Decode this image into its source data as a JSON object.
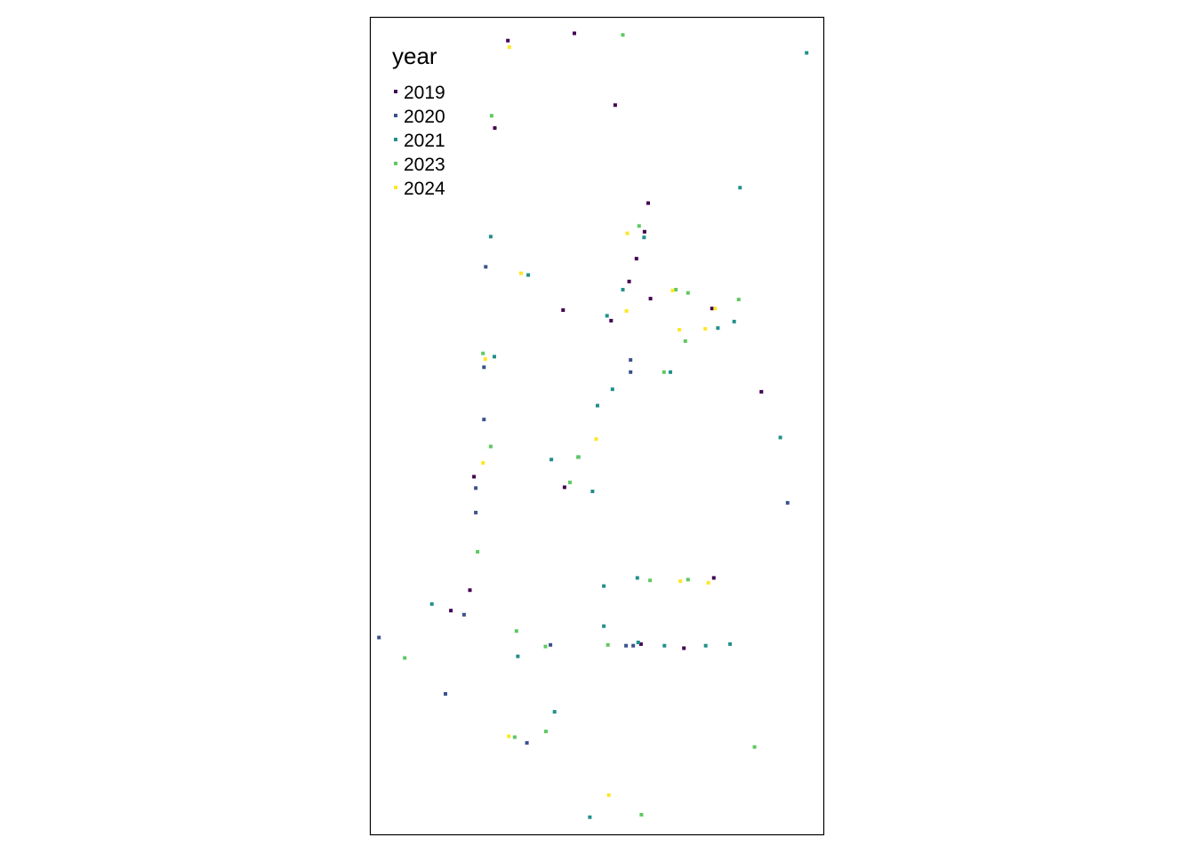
{
  "legend": {
    "title": "year",
    "items": [
      {
        "label": "2019",
        "color": "#440154"
      },
      {
        "label": "2020",
        "color": "#3b528b"
      },
      {
        "label": "2021",
        "color": "#21908c"
      },
      {
        "label": "2023",
        "color": "#5ec962"
      },
      {
        "label": "2024",
        "color": "#fde725"
      }
    ]
  },
  "chart_data": {
    "type": "scatter",
    "title": "",
    "xlabel": "",
    "ylabel": "",
    "grid": false,
    "legend_position": "top-left",
    "series": [
      {
        "name": "2019",
        "color": "#440154",
        "points": [
          [
            0.303,
            0.028
          ],
          [
            0.45,
            0.019
          ],
          [
            0.54,
            0.107
          ],
          [
            0.274,
            0.135
          ],
          [
            0.613,
            0.227
          ],
          [
            0.605,
            0.262
          ],
          [
            0.587,
            0.295
          ],
          [
            0.571,
            0.323
          ],
          [
            0.618,
            0.344
          ],
          [
            0.425,
            0.358
          ],
          [
            0.531,
            0.371
          ],
          [
            0.754,
            0.356
          ],
          [
            0.863,
            0.458
          ],
          [
            0.428,
            0.575
          ],
          [
            0.228,
            0.562
          ],
          [
            0.219,
            0.701
          ],
          [
            0.177,
            0.726
          ],
          [
            0.758,
            0.686
          ],
          [
            0.692,
            0.772
          ],
          [
            0.597,
            0.767
          ]
        ]
      },
      {
        "name": "2020",
        "color": "#3b528b",
        "points": [
          [
            0.254,
            0.305
          ],
          [
            0.574,
            0.419
          ],
          [
            0.574,
            0.434
          ],
          [
            0.25,
            0.428
          ],
          [
            0.25,
            0.492
          ],
          [
            0.232,
            0.576
          ],
          [
            0.232,
            0.606
          ],
          [
            0.921,
            0.594
          ],
          [
            0.206,
            0.731
          ],
          [
            0.018,
            0.759
          ],
          [
            0.165,
            0.828
          ],
          [
            0.397,
            0.768
          ],
          [
            0.564,
            0.769
          ],
          [
            0.58,
            0.769
          ],
          [
            0.345,
            0.888
          ]
        ]
      },
      {
        "name": "2021",
        "color": "#21908c",
        "points": [
          [
            0.963,
            0.043
          ],
          [
            0.816,
            0.208
          ],
          [
            0.265,
            0.268
          ],
          [
            0.348,
            0.315
          ],
          [
            0.557,
            0.333
          ],
          [
            0.522,
            0.365
          ],
          [
            0.604,
            0.269
          ],
          [
            0.803,
            0.372
          ],
          [
            0.767,
            0.38
          ],
          [
            0.273,
            0.415
          ],
          [
            0.662,
            0.434
          ],
          [
            0.534,
            0.455
          ],
          [
            0.501,
            0.475
          ],
          [
            0.905,
            0.514
          ],
          [
            0.399,
            0.541
          ],
          [
            0.459,
            0.538
          ],
          [
            0.49,
            0.58
          ],
          [
            0.515,
            0.696
          ],
          [
            0.589,
            0.686
          ],
          [
            0.135,
            0.718
          ],
          [
            0.515,
            0.745
          ],
          [
            0.649,
            0.769
          ],
          [
            0.794,
            0.767
          ],
          [
            0.591,
            0.765
          ],
          [
            0.325,
            0.782
          ],
          [
            0.406,
            0.85
          ],
          [
            0.484,
            0.979
          ],
          [
            0.74,
            0.769
          ]
        ]
      },
      {
        "name": "2023",
        "color": "#5ec962",
        "points": [
          [
            0.557,
            0.021
          ],
          [
            0.267,
            0.12
          ],
          [
            0.593,
            0.255
          ],
          [
            0.674,
            0.333
          ],
          [
            0.701,
            0.337
          ],
          [
            0.813,
            0.345
          ],
          [
            0.695,
            0.396
          ],
          [
            0.648,
            0.434
          ],
          [
            0.248,
            0.411
          ],
          [
            0.265,
            0.525
          ],
          [
            0.458,
            0.538
          ],
          [
            0.44,
            0.569
          ],
          [
            0.236,
            0.654
          ],
          [
            0.617,
            0.689
          ],
          [
            0.701,
            0.688
          ],
          [
            0.322,
            0.751
          ],
          [
            0.386,
            0.77
          ],
          [
            0.524,
            0.768
          ],
          [
            0.075,
            0.784
          ],
          [
            0.318,
            0.881
          ],
          [
            0.387,
            0.874
          ],
          [
            0.848,
            0.893
          ],
          [
            0.598,
            0.976
          ]
        ]
      },
      {
        "name": "2024",
        "color": "#fde725",
        "points": [
          [
            0.306,
            0.036
          ],
          [
            0.567,
            0.264
          ],
          [
            0.332,
            0.313
          ],
          [
            0.565,
            0.359
          ],
          [
            0.667,
            0.334
          ],
          [
            0.739,
            0.381
          ],
          [
            0.682,
            0.382
          ],
          [
            0.761,
            0.356
          ],
          [
            0.253,
            0.418
          ],
          [
            0.248,
            0.545
          ],
          [
            0.498,
            0.516
          ],
          [
            0.684,
            0.69
          ],
          [
            0.746,
            0.692
          ],
          [
            0.305,
            0.88
          ],
          [
            0.526,
            0.952
          ]
        ]
      }
    ]
  }
}
